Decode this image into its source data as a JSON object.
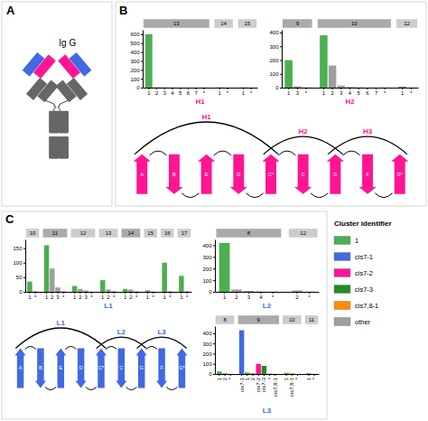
{
  "chart_data": [
    {
      "type": "diagram",
      "title": "Ig G",
      "annotations": [
        "A"
      ],
      "colors": [
        "#4169E1",
        "#FF1493",
        "#666666"
      ]
    },
    {
      "type": "strand_diagram",
      "title": "B",
      "categories": [
        "A",
        "B",
        "E",
        "D",
        "C*",
        "C",
        "G",
        "F",
        "G*"
      ],
      "annotations": [
        "H1",
        "H2",
        "H3"
      ],
      "color": "#FF1493"
    },
    {
      "type": "bar",
      "title": "H1",
      "color": "#FF1493",
      "ylim": [
        0,
        650
      ],
      "yticks": [
        0,
        100,
        200,
        300,
        400,
        500,
        600
      ],
      "groups": [
        {
          "name": "13",
          "color": "#AAAAAA",
          "categories": [
            "1",
            "2",
            "3",
            "4",
            "5",
            "6",
            "7",
            "*"
          ],
          "values": [
            600,
            5,
            3,
            2,
            1,
            1,
            1,
            2
          ],
          "colors": [
            "#4CAF50",
            "#9E9E9E",
            "#9E9E9E",
            "#9E9E9E",
            "#9E9E9E",
            "#9E9E9E",
            "#9E9E9E",
            "#9E9E9E"
          ]
        },
        {
          "name": "14",
          "color": "#CCCCCC",
          "categories": [
            "1",
            "*"
          ],
          "values": [
            3,
            1
          ],
          "colors": [
            "#4CAF50",
            "#9E9E9E"
          ]
        },
        {
          "name": "15",
          "color": "#CCCCCC",
          "categories": [
            "1",
            "*"
          ],
          "values": [
            3,
            1
          ],
          "colors": [
            "#4CAF50",
            "#9E9E9E"
          ]
        }
      ]
    },
    {
      "type": "bar",
      "title": "H2",
      "color": "#FF1493",
      "ylim": [
        0,
        420
      ],
      "yticks": [
        0,
        100,
        200,
        300,
        400
      ],
      "groups": [
        {
          "name": "9",
          "color": "#AAAAAA",
          "categories": [
            "1",
            "3",
            "*"
          ],
          "values": [
            200,
            10,
            2
          ],
          "colors": [
            "#4CAF50",
            "#9E9E9E",
            "#9E9E9E"
          ]
        },
        {
          "name": "10",
          "color": "#AAAAAA",
          "categories": [
            "1",
            "2",
            "3",
            "4",
            "5",
            "6",
            "7",
            "*"
          ],
          "values": [
            380,
            160,
            15,
            5,
            2,
            1,
            1,
            2
          ],
          "colors": [
            "#4CAF50",
            "#9E9E9E",
            "#9E9E9E",
            "#9E9E9E",
            "#9E9E9E",
            "#9E9E9E",
            "#9E9E9E",
            "#9E9E9E"
          ]
        },
        {
          "name": "12",
          "color": "#CCCCCC",
          "categories": [
            "1",
            "*"
          ],
          "values": [
            8,
            1
          ],
          "colors": [
            "#4CAF50",
            "#9E9E9E"
          ]
        }
      ]
    },
    {
      "type": "strand_diagram",
      "title": "C",
      "categories": [
        "A",
        "B",
        "E",
        "D",
        "C*",
        "C",
        "G",
        "F",
        "G*"
      ],
      "annotations": [
        "L1",
        "L2",
        "L3"
      ],
      "color": "#4169E1"
    },
    {
      "type": "bar",
      "title": "L1",
      "color": "#4169E1",
      "ylim": [
        0,
        180
      ],
      "yticks": [
        0,
        50,
        100,
        150
      ],
      "groups": [
        {
          "name": "10",
          "color": "#CCCCCC",
          "categories": [
            "1",
            "*"
          ],
          "values": [
            35,
            2
          ],
          "colors": [
            "#4CAF50",
            "#9E9E9E"
          ]
        },
        {
          "name": "11",
          "color": "#AAAAAA",
          "categories": [
            "1",
            "2",
            "3",
            "*"
          ],
          "values": [
            160,
            80,
            15,
            2
          ],
          "colors": [
            "#4CAF50",
            "#9E9E9E",
            "#9E9E9E",
            "#9E9E9E"
          ]
        },
        {
          "name": "12",
          "color": "#CCCCCC",
          "categories": [
            "1",
            "2",
            "3",
            "*"
          ],
          "values": [
            20,
            10,
            5,
            1
          ],
          "colors": [
            "#4CAF50",
            "#9E9E9E",
            "#9E9E9E",
            "#9E9E9E"
          ]
        },
        {
          "name": "13",
          "color": "#CCCCCC",
          "categories": [
            "1",
            "2",
            "*"
          ],
          "values": [
            40,
            8,
            2
          ],
          "colors": [
            "#4CAF50",
            "#9E9E9E",
            "#9E9E9E"
          ]
        },
        {
          "name": "14",
          "color": "#AAAAAA",
          "categories": [
            "1",
            "2",
            "*"
          ],
          "values": [
            10,
            8,
            2
          ],
          "colors": [
            "#4CAF50",
            "#9E9E9E",
            "#9E9E9E"
          ]
        },
        {
          "name": "15",
          "color": "#CCCCCC",
          "categories": [
            "1",
            "*"
          ],
          "values": [
            5,
            1
          ],
          "colors": [
            "#4CAF50",
            "#9E9E9E"
          ]
        },
        {
          "name": "16",
          "color": "#CCCCCC",
          "categories": [
            "1",
            "*"
          ],
          "values": [
            100,
            2
          ],
          "colors": [
            "#4CAF50",
            "#9E9E9E"
          ]
        },
        {
          "name": "17",
          "color": "#CCCCCC",
          "categories": [
            "1",
            "*"
          ],
          "values": [
            55,
            2
          ],
          "colors": [
            "#4CAF50",
            "#9E9E9E"
          ]
        }
      ]
    },
    {
      "type": "bar",
      "title": "L2",
      "color": "#4169E1",
      "ylim": [
        0,
        450
      ],
      "yticks": [
        0,
        100,
        200,
        300,
        400
      ],
      "groups": [
        {
          "name": "8",
          "color": "#AAAAAA",
          "categories": [
            "1",
            "2",
            "3",
            "4",
            "*"
          ],
          "values": [
            420,
            20,
            8,
            3,
            2
          ],
          "colors": [
            "#4CAF50",
            "#9E9E9E",
            "#9E9E9E",
            "#9E9E9E",
            "#9E9E9E"
          ]
        },
        {
          "name": "12",
          "color": "#CCCCCC",
          "categories": [
            "2",
            "*"
          ],
          "values": [
            12,
            2
          ],
          "colors": [
            "#9E9E9E",
            "#9E9E9E"
          ]
        }
      ]
    },
    {
      "type": "bar",
      "title": "L3",
      "color": "#4169E1",
      "ylim": [
        0,
        470
      ],
      "yticks": [
        0,
        100,
        200,
        300,
        400
      ],
      "groups": [
        {
          "name": "8",
          "color": "#CCCCCC",
          "categories": [
            "1",
            "2",
            "*"
          ],
          "values": [
            25,
            10,
            2
          ],
          "colors": [
            "#4CAF50",
            "#9E9E9E",
            "#9E9E9E"
          ]
        },
        {
          "name": "9",
          "color": "#AAAAAA",
          "categories": [
            "cis7-1",
            "1",
            "2",
            "cis7-2",
            "cis7-3",
            "*",
            "cis7,8-1"
          ],
          "values": [
            430,
            15,
            10,
            100,
            80,
            5,
            3
          ],
          "colors": [
            "#4169E1",
            "#4CAF50",
            "#9E9E9E",
            "#FF1493",
            "#228B22",
            "#9E9E9E",
            "#FF8C00"
          ]
        },
        {
          "name": "10",
          "color": "#CCCCCC",
          "categories": [
            "1",
            "cis7,8-1",
            "*"
          ],
          "values": [
            12,
            8,
            2
          ],
          "colors": [
            "#4CAF50",
            "#FF8C00",
            "#9E9E9E"
          ]
        },
        {
          "name": "11",
          "color": "#CCCCCC",
          "categories": [
            "1",
            "*"
          ],
          "values": [
            8,
            2
          ],
          "colors": [
            "#4CAF50",
            "#9E9E9E"
          ]
        }
      ]
    },
    {
      "type": "legend",
      "title": "Cluster identifier",
      "categories": [
        "1",
        "cis7-1",
        "cis7-2",
        "cis7-3",
        "cis7,8-1",
        "other"
      ],
      "colors": [
        "#4CAF50",
        "#4169E1",
        "#FF1493",
        "#228B22",
        "#FF8C00",
        "#9E9E9E"
      ]
    }
  ]
}
